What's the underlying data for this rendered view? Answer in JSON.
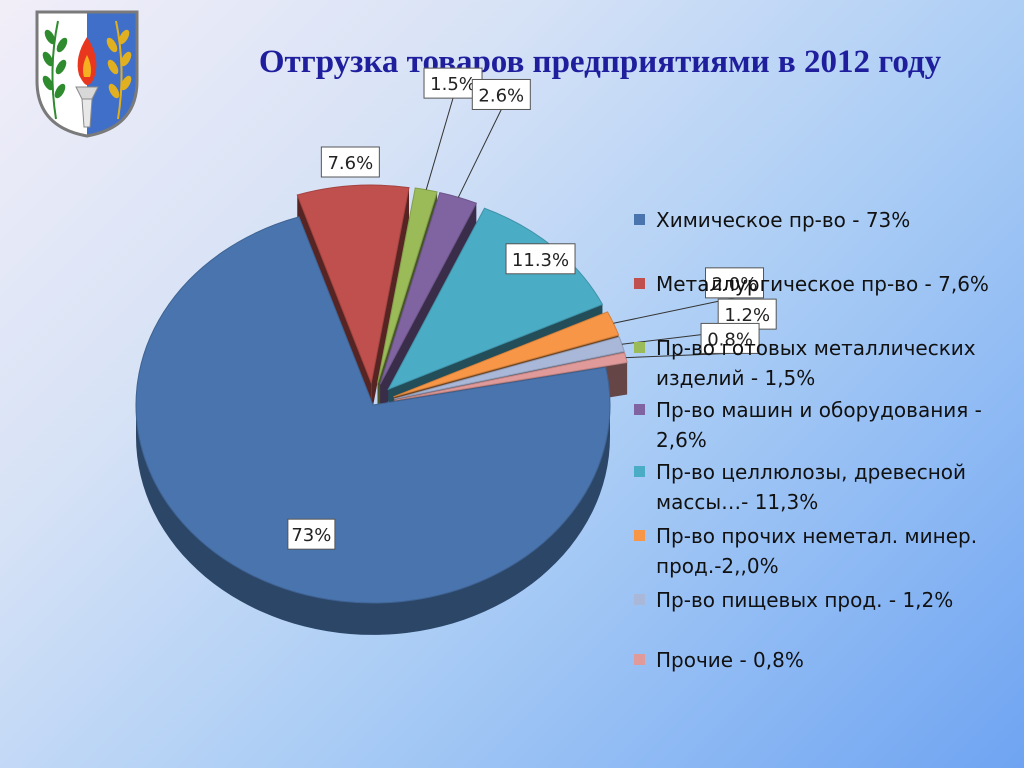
{
  "title": "Отгрузка товаров предприятиями в 2012 году",
  "emblem": {
    "icon": "coat-of-arms-icon",
    "colors": {
      "field_white": "#ffffff",
      "field_blue": "#3f6fc9",
      "flame": "#e8361f",
      "leaves_green": "#2e8b2e",
      "leaves_gold": "#e0b020"
    }
  },
  "chart_data": {
    "type": "pie",
    "style": "3d-exploded",
    "title": "Отгрузка товаров предприятиями в 2012 году",
    "legend_position": "right",
    "slices": [
      {
        "legend": "Химическое пр-во - 73%",
        "label": "73%",
        "value": 73,
        "color": "#4a74ad"
      },
      {
        "legend": "Металлургическое пр-во - 7,6%",
        "label": "7.6%",
        "value": 7.6,
        "color": "#c0504d"
      },
      {
        "legend": "Пр-во готовых металлических изделий - 1,5%",
        "label": "1.5%",
        "value": 1.5,
        "color": "#9bbb59"
      },
      {
        "legend": "Пр-во машин и оборудования - 2,6%",
        "label": "2.6%",
        "value": 2.6,
        "color": "#8064a2"
      },
      {
        "legend": "Пр-во целлюлозы, древесной массы…- 11,3%",
        "label": "11.3%",
        "value": 11.3,
        "color": "#4bacc6"
      },
      {
        "legend": "Пр-во прочих неметал. минер. прод.-2,,0%",
        "label": "2.0%",
        "value": 2.0,
        "color": "#f79646"
      },
      {
        "legend": "Пр-во пищевых прод. - 1,2%",
        "label": "1.2%",
        "value": 1.2,
        "color": "#a9b8d9"
      },
      {
        "legend": "Прочие - 0,8%",
        "label": "0.8%",
        "value": 0.8,
        "color": "#e09a9a"
      }
    ]
  }
}
